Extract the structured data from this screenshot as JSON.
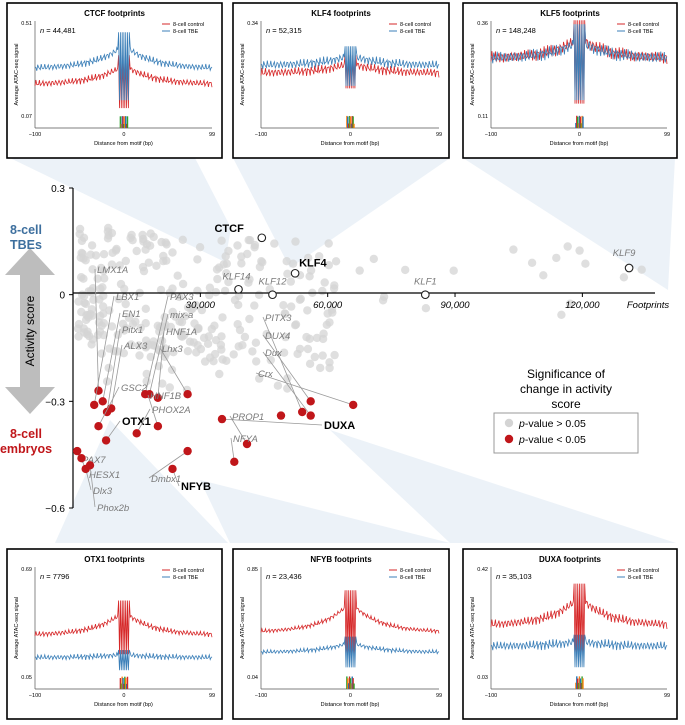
{
  "colors": {
    "control": "#d62728",
    "tbe": "#3b7fb8",
    "grey_point": "#d4d4d4",
    "sig_point": "#c0161a",
    "tbe_label": "#3d6f9e",
    "embryo_label": "#c0161a",
    "callout": "#c9d9ec"
  },
  "chart_data": [
    {
      "type": "scatter",
      "name": "main-scatter",
      "x_ticks": [
        30000,
        60000,
        90000,
        120000
      ],
      "x_tick_labels": [
        "30,000",
        "60,000",
        "90,000",
        "120,000"
      ],
      "x_axis_label": "Footprints",
      "y_ticks": [
        0.3,
        0,
        -0.3,
        -0.6
      ],
      "y_tick_labels": [
        "0.3",
        "0",
        "−0.3",
        "−0.6"
      ],
      "xlim": [
        0,
        143000
      ],
      "ylim": [
        -0.6,
        0.3
      ],
      "y_axis_label": "Activity score",
      "top_group_label": [
        "8-cell",
        "TBEs"
      ],
      "bottom_group_label": [
        "8-cell",
        "embryos"
      ],
      "legend": {
        "title": [
          "Significance of",
          "change in activity",
          "score"
        ],
        "items": [
          {
            "label": "p-value > 0.05",
            "p_label": "p",
            "rest": "-value > 0.05"
          },
          {
            "label": "p-value < 0.05",
            "p_label": "p",
            "rest": "-value < 0.05"
          }
        ],
        "placement": "right"
      },
      "labeled_points": [
        {
          "label": "CTCF",
          "x": 44481,
          "y": 0.16,
          "bold": true
        },
        {
          "label": "KLF4",
          "x": 52315,
          "y": 0.06,
          "bold": true
        },
        {
          "label": "KLF5",
          "x": 148248,
          "y": 0.03,
          "bold": true
        },
        {
          "label": "KLF9",
          "x": 131000,
          "y": 0.075,
          "bold": false
        },
        {
          "label": "KLF14",
          "x": 39000,
          "y": 0.015,
          "bold": false
        },
        {
          "label": "KLF12",
          "x": 47000,
          "y": 0.0,
          "bold": false
        },
        {
          "label": "KLF1",
          "x": 83000,
          "y": 0.0,
          "bold": false
        }
      ],
      "significant_points": [
        {
          "label": "LMX1A",
          "x": 6000,
          "y": -0.27
        },
        {
          "label": "LBX1",
          "x": 5000,
          "y": -0.31
        },
        {
          "label": "EN1",
          "x": 7000,
          "y": -0.3
        },
        {
          "label": "Pitx1",
          "x": 8000,
          "y": -0.33
        },
        {
          "label": "ALX3",
          "x": 9000,
          "y": -0.32
        },
        {
          "label": "GSC2",
          "x": 6000,
          "y": -0.37
        },
        {
          "label": "OTX1",
          "x": 7796,
          "y": -0.41,
          "bold": true
        },
        {
          "label": "PAX7",
          "x": 1000,
          "y": -0.44
        },
        {
          "label": "HESX1",
          "x": 2000,
          "y": -0.46
        },
        {
          "label": "Dlx3",
          "x": 3000,
          "y": -0.49
        },
        {
          "label": "Phox2b",
          "x": 4000,
          "y": -0.48
        },
        {
          "label": "PAX3",
          "x": 17000,
          "y": -0.28
        },
        {
          "label": "mix-a",
          "x": 18000,
          "y": -0.28
        },
        {
          "label": "HNF1A",
          "x": 20000,
          "y": -0.29
        },
        {
          "label": "Lhx3",
          "x": 27000,
          "y": -0.28
        },
        {
          "label": "HNF1B",
          "x": 20000,
          "y": -0.37
        },
        {
          "label": "PHOX2A",
          "x": 15000,
          "y": -0.39
        },
        {
          "label": "Dmbx1",
          "x": 27000,
          "y": -0.44
        },
        {
          "label": "NFYB",
          "x": 23436,
          "y": -0.49,
          "bold": true
        },
        {
          "label": "PITX3",
          "x": 54000,
          "y": -0.33
        },
        {
          "label": "DUX4",
          "x": 56000,
          "y": -0.3
        },
        {
          "label": "Dux",
          "x": 56000,
          "y": -0.34
        },
        {
          "label": "Crx",
          "x": 66000,
          "y": -0.31
        },
        {
          "label": "DUXA",
          "x": 35103,
          "y": -0.35,
          "bold": true
        },
        {
          "label": "PROP1",
          "x": 41000,
          "y": -0.42
        },
        {
          "label": "NFYA",
          "x": 38000,
          "y": -0.47
        },
        {
          "label": "",
          "x": 49000,
          "y": -0.34
        }
      ]
    },
    {
      "type": "line",
      "name": "CTCF footprints",
      "title": "CTCF footprints",
      "n_label": "n = 44,481",
      "n_italic": "n",
      "n_value": " = 44,481",
      "ylabel": "Average ATAC-seq signal",
      "xlabel": "Distance from motif (bp)",
      "y_tick_labels": [
        "0.51",
        "0.07"
      ],
      "ylim": [
        0.07,
        0.51
      ],
      "x_tick_labels": [
        "−100",
        "0",
        "99"
      ],
      "xlim": [
        -100,
        99
      ],
      "series": [
        {
          "name": "8-cell control",
          "flank_level": 0.22,
          "peak_level": 0.32,
          "center_dip": 0.1
        },
        {
          "name": "8-cell TBE",
          "flank_level": 0.3,
          "peak_level": 0.42,
          "center_dip": 0.14
        }
      ]
    },
    {
      "type": "line",
      "name": "KLF4 footprints",
      "title": "KLF4 footprints",
      "n_label": "n = 52,315",
      "n_italic": "n",
      "n_value": " = 52,315",
      "ylabel": "Average ATAC-seq signal",
      "xlabel": "Distance from motif (bp)",
      "y_tick_labels": [
        "0.34",
        ""
      ],
      "ylim": [
        0.0,
        0.34
      ],
      "x_tick_labels": [
        "−100",
        "0",
        "99"
      ],
      "xlim": [
        -100,
        99
      ],
      "series": [
        {
          "name": "8-cell control",
          "flank_level": 0.16,
          "peak_level": 0.2,
          "center_dip": 0.1
        },
        {
          "name": "8-cell TBE",
          "flank_level": 0.19,
          "peak_level": 0.23,
          "center_dip": 0.11
        }
      ]
    },
    {
      "type": "line",
      "name": "KLF5 footprints",
      "title": "KLF5 footprints",
      "n_label": "n = 148,248",
      "n_italic": "n",
      "n_value": " = 148,248",
      "ylabel": "Average ATAC-seq signal",
      "xlabel": "Distance from motif (bp)",
      "y_tick_labels": [
        "0.36",
        "0.11"
      ],
      "ylim": [
        0.11,
        0.36
      ],
      "x_tick_labels": [
        "−100",
        "0",
        "99"
      ],
      "xlim": [
        -100,
        99
      ],
      "series": [
        {
          "name": "8-cell control",
          "flank_level": 0.27,
          "peak_level": 0.33,
          "center_dip": 0.14
        },
        {
          "name": "8-cell TBE",
          "flank_level": 0.27,
          "peak_level": 0.32,
          "center_dip": 0.15
        }
      ]
    },
    {
      "type": "line",
      "name": "OTX1 footprints",
      "title": "OTX1 footprints",
      "n_label": "n = 7796",
      "n_italic": "n",
      "n_value": " = 7796",
      "ylabel": "Average ATAC-seq signal",
      "xlabel": "Distance from motif (bp)",
      "y_tick_labels": [
        "0.69",
        "0.05"
      ],
      "ylim": [
        0.05,
        0.69
      ],
      "x_tick_labels": [
        "−100",
        "0",
        "99"
      ],
      "xlim": [
        -100,
        99
      ],
      "series": [
        {
          "name": "8-cell control",
          "flank_level": 0.3,
          "peak_level": 0.45,
          "center_dip": 0.18
        },
        {
          "name": "8-cell TBE",
          "flank_level": 0.16,
          "peak_level": 0.18,
          "center_dip": 0.08
        }
      ]
    },
    {
      "type": "line",
      "name": "NFYB footprints",
      "title": "NFYB footprints",
      "n_label": "n = 23,436",
      "n_italic": "n",
      "n_value": " = 23,436",
      "ylabel": "Average ATAC-seq signal",
      "xlabel": "Distance from motif (bp)",
      "y_tick_labels": [
        "0.85",
        "0.04"
      ],
      "ylim": [
        0.04,
        0.85
      ],
      "x_tick_labels": [
        "−100",
        "0",
        "99"
      ],
      "xlim": [
        -100,
        99
      ],
      "series": [
        {
          "name": "8-cell control",
          "flank_level": 0.38,
          "peak_level": 0.62,
          "center_dip": 0.2
        },
        {
          "name": "8-cell TBE",
          "flank_level": 0.22,
          "peak_level": 0.3,
          "center_dip": 0.1
        }
      ]
    },
    {
      "type": "line",
      "name": "DUXA footprints",
      "title": "DUXA footprints",
      "n_label": "n = 35,103",
      "n_italic": "n",
      "n_value": " = 35,103",
      "ylabel": "Average ATAC-seq signal",
      "xlabel": "Distance from motif (bp)",
      "y_tick_labels": [
        "0.42",
        "0.03"
      ],
      "ylim": [
        0.03,
        0.42
      ],
      "x_tick_labels": [
        "−100",
        "0",
        "99"
      ],
      "xlim": [
        -100,
        99
      ],
      "series": [
        {
          "name": "8-cell control",
          "flank_level": 0.22,
          "peak_level": 0.33,
          "center_dip": 0.1
        },
        {
          "name": "8-cell TBE",
          "flank_level": 0.14,
          "peak_level": 0.16,
          "center_dip": 0.06
        }
      ]
    }
  ]
}
